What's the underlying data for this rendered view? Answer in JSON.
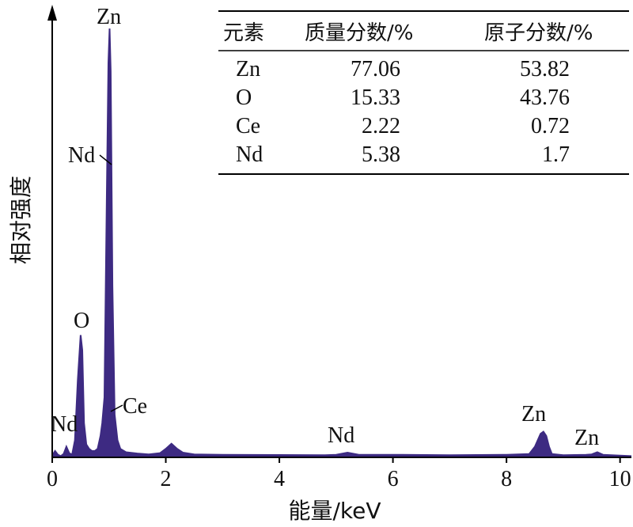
{
  "chart_data": {
    "type": "line",
    "xlabel": "能量/keV",
    "ylabel": "相对强度",
    "xlim": [
      0,
      10.2
    ],
    "ylim": [
      0,
      100
    ],
    "xticks": [
      {
        "value": 0,
        "label": "0"
      },
      {
        "value": 2,
        "label": "2"
      },
      {
        "value": 4,
        "label": "4"
      },
      {
        "value": 6,
        "label": "6"
      },
      {
        "value": 8,
        "label": "8"
      },
      {
        "value": 10,
        "label": "10"
      }
    ],
    "series": [
      {
        "color": "#3d2a82",
        "x": [
          0.0,
          0.05,
          0.1,
          0.15,
          0.2,
          0.25,
          0.3,
          0.35,
          0.4,
          0.45,
          0.5,
          0.53,
          0.56,
          0.6,
          0.65,
          0.7,
          0.75,
          0.8,
          0.85,
          0.88,
          0.92,
          0.96,
          0.99,
          1.01,
          1.03,
          1.06,
          1.1,
          1.15,
          1.2,
          1.3,
          1.5,
          1.7,
          1.9,
          2.0,
          2.1,
          2.2,
          2.3,
          2.5,
          3.0,
          4.0,
          4.8,
          5.0,
          5.2,
          5.4,
          6.0,
          7.0,
          8.0,
          8.4,
          8.5,
          8.6,
          8.65,
          8.7,
          8.75,
          8.8,
          9.0,
          9.4,
          9.5,
          9.6,
          9.7,
          10.0,
          10.2
        ],
        "y": [
          0.4,
          1.5,
          0.6,
          0.3,
          0.8,
          2.5,
          1.0,
          0.6,
          4.0,
          18.0,
          28.5,
          25.0,
          8.0,
          3.0,
          2.0,
          1.5,
          1.5,
          2.0,
          5.0,
          8.0,
          14.0,
          60.0,
          92.0,
          100.0,
          90.0,
          40.0,
          10.0,
          4.0,
          2.0,
          1.2,
          0.9,
          0.7,
          1.0,
          2.0,
          3.2,
          2.0,
          1.1,
          0.7,
          0.6,
          0.55,
          0.5,
          0.6,
          1.1,
          0.6,
          0.6,
          0.5,
          0.6,
          0.8,
          2.5,
          5.5,
          6.0,
          5.0,
          2.5,
          0.8,
          0.5,
          0.6,
          0.7,
          1.2,
          0.6,
          0.4,
          0.3
        ]
      }
    ],
    "annotations": [
      {
        "text": "Zn",
        "x": 1.01,
        "y": 100
      },
      {
        "text": "Nd",
        "x": 0.95,
        "y": 70
      },
      {
        "text": "O",
        "x": 0.53,
        "y": 29
      },
      {
        "text": "Ce",
        "x": 0.88,
        "y": 8
      },
      {
        "text": "Nd",
        "x": 0.25,
        "y": 3
      },
      {
        "text": "Nd",
        "x": 5.2,
        "y": 1.1
      },
      {
        "text": "Zn",
        "x": 8.65,
        "y": 6
      },
      {
        "text": "Zn",
        "x": 9.6,
        "y": 1.2
      }
    ],
    "table": {
      "headers": [
        "元素",
        "质量分数/%",
        "原子分数/%"
      ],
      "rows": [
        [
          "Zn",
          "77.06",
          "53.82"
        ],
        [
          "O",
          "15.33",
          "43.76"
        ],
        [
          "Ce",
          "2.22",
          "0.72"
        ],
        [
          "Nd",
          "5.38",
          "1.7"
        ]
      ]
    }
  }
}
